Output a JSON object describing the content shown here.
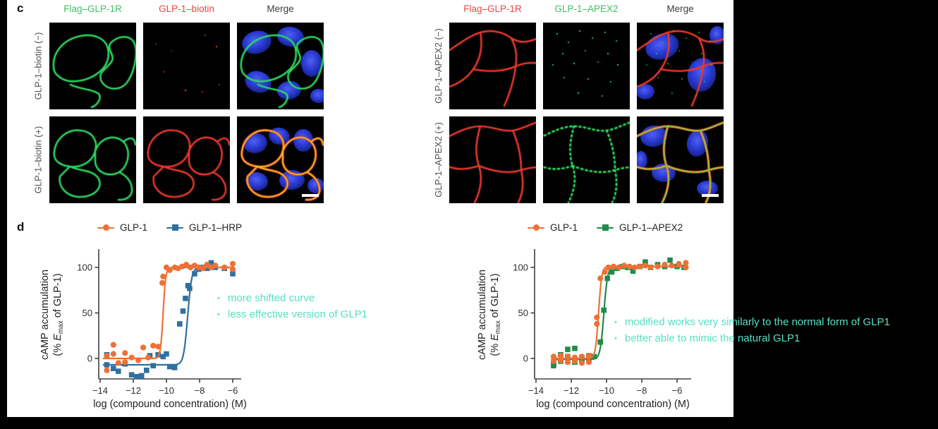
{
  "page": {
    "background": "#000000",
    "figure_background": "#FFFFFF"
  },
  "colors": {
    "annotation_teal": "#57E0C3",
    "channel_green": "#2BD85E",
    "channel_red": "#E8372C",
    "nucleus_blue": "#2F3FD6",
    "overlap_yellow": "#F0C41F",
    "axis_gray": "#404040",
    "scale_bar_white": "#FFFFFF",
    "header_gray": "#3C3C3C"
  },
  "panel_c": {
    "label": "c",
    "blocks": [
      {
        "id": "biotin",
        "col_headers": [
          {
            "text": "Flag–GLP-1R",
            "color": "#41BE62"
          },
          {
            "text": "GLP-1–biotin",
            "color": "#F04444"
          },
          {
            "text": "Merge",
            "color": "#3C3C3C"
          }
        ],
        "row_labels": [
          "GLP-1–biotin (−)",
          "GLP-1–biotin (+)"
        ]
      },
      {
        "id": "apex2",
        "col_headers": [
          {
            "text": "Flag–GLP-1R",
            "color": "#F04444"
          },
          {
            "text": "GLP-1–APEX2",
            "color": "#41BE62"
          },
          {
            "text": "Merge",
            "color": "#3C3C3C"
          }
        ],
        "row_labels": [
          "GLP-1–APEX2 (−)",
          "GLP-1–APEX2 (+)"
        ]
      }
    ]
  },
  "panel_d": {
    "label": "d"
  },
  "annotations": {
    "bullet": "•",
    "color": "#57E0C3",
    "left": {
      "items": [
        "more shifted curve",
        "less effective version of GLP1"
      ]
    },
    "right": {
      "items": [
        "modified works very similarly to the normal form of GLP1",
        "better able to mimic the natural GLP1"
      ]
    }
  },
  "chart_data": [
    {
      "type": "scatter",
      "title": "",
      "xlabel": "log (compound concentration) (M)",
      "ylabel": "cAMP accumulation (% Emax of GLP-1)",
      "ylabel_lines": {
        "line1": "cAMP accumulation",
        "line2_prefix": "(% ",
        "line2_italic": "E",
        "line2_sub": "max",
        "line2_suffix": " of GLP-1)"
      },
      "xlim": [
        -14,
        -5.8
      ],
      "ylim": [
        -25,
        118
      ],
      "xticks": [
        "−14",
        "−12",
        "−10",
        "−8",
        "−6"
      ],
      "xtick_values": [
        -14,
        -12,
        -10,
        -8,
        -6
      ],
      "yticks": [
        "0",
        "50",
        "100"
      ],
      "ytick_values": [
        0,
        50,
        100
      ],
      "grid": false,
      "legend_position": "top",
      "series": [
        {
          "name": "GLP-1",
          "color": "#ED7136",
          "marker": "circle",
          "fit": {
            "bottom": 0,
            "top": 100,
            "ec50": -10.2,
            "hill": 5.5
          },
          "points": [
            [
              -13.6,
              3
            ],
            [
              -13.6,
              -13
            ],
            [
              -13.2,
              15
            ],
            [
              -13.2,
              5
            ],
            [
              -12.9,
              -5
            ],
            [
              -12.5,
              6
            ],
            [
              -12.5,
              -4
            ],
            [
              -12.1,
              1
            ],
            [
              -11.7,
              -2
            ],
            [
              -11.4,
              12
            ],
            [
              -11.1,
              1
            ],
            [
              -10.8,
              14
            ],
            [
              -10.5,
              13
            ],
            [
              -10.25,
              83
            ],
            [
              -10.2,
              90
            ],
            [
              -10,
              100
            ],
            [
              -9.8,
              97
            ],
            [
              -9.5,
              100
            ],
            [
              -9.3,
              99
            ],
            [
              -9.05,
              101
            ],
            [
              -8.8,
              103
            ],
            [
              -8.55,
              100
            ],
            [
              -8.3,
              102
            ],
            [
              -8.05,
              100
            ],
            [
              -7.8,
              99
            ],
            [
              -7.55,
              103
            ],
            [
              -7.3,
              100
            ],
            [
              -7.05,
              102
            ],
            [
              -6.5,
              100
            ],
            [
              -6,
              104
            ],
            [
              -6,
              98
            ]
          ]
        },
        {
          "name": "GLP-1–HRP",
          "color": "#30709F",
          "marker": "square",
          "fit": {
            "bottom": -7,
            "top": 100,
            "ec50": -8.72,
            "hill": 3.6
          },
          "points": [
            [
              -13.6,
              4
            ],
            [
              -13.6,
              -7
            ],
            [
              -13.2,
              -11
            ],
            [
              -12.9,
              -14
            ],
            [
              -12.5,
              -6
            ],
            [
              -12.1,
              -18
            ],
            [
              -11.8,
              -20
            ],
            [
              -11.5,
              -19
            ],
            [
              -11.2,
              -13
            ],
            [
              -11,
              3
            ],
            [
              -10.8,
              -8
            ],
            [
              -10.5,
              4
            ],
            [
              -10.2,
              2
            ],
            [
              -10,
              5
            ],
            [
              -9.8,
              -9
            ],
            [
              -9.5,
              -10
            ],
            [
              -9.2,
              38
            ],
            [
              -9,
              52
            ],
            [
              -8.85,
              66
            ],
            [
              -8.7,
              80
            ],
            [
              -8.6,
              77
            ],
            [
              -8.3,
              93
            ],
            [
              -8.05,
              98
            ],
            [
              -7.8,
              100
            ],
            [
              -7.55,
              99
            ],
            [
              -7.3,
              105
            ],
            [
              -7.05,
              100
            ],
            [
              -6.5,
              99
            ],
            [
              -6,
              93
            ]
          ]
        }
      ]
    },
    {
      "type": "scatter",
      "title": "",
      "xlabel": "log (compound concentration) (M)",
      "ylabel": "cAMP accumulation (% Emax of GLP-1)",
      "ylabel_lines": {
        "line1": "cAMP accumulation",
        "line2_prefix": "(% ",
        "line2_italic": "E",
        "line2_sub": "max",
        "line2_suffix": " of GLP-1)"
      },
      "xlim": [
        -14,
        -5.3
      ],
      "ylim": [
        -25,
        118
      ],
      "xticks": [
        "−14",
        "−12",
        "−10",
        "−8",
        "−6"
      ],
      "xtick_values": [
        -14,
        -12,
        -10,
        -8,
        -6
      ],
      "yticks": [
        "0",
        "50",
        "100"
      ],
      "ytick_values": [
        0,
        50,
        100
      ],
      "grid": false,
      "legend_position": "top",
      "series": [
        {
          "name": "GLP-1",
          "color": "#ED7136",
          "marker": "circle",
          "fit": {
            "bottom": 0,
            "top": 101,
            "ec50": -10.45,
            "hill": 5
          },
          "points": [
            [
              -13,
              2
            ],
            [
              -13,
              -3
            ],
            [
              -12.6,
              3
            ],
            [
              -12.6,
              -2
            ],
            [
              -12.2,
              2
            ],
            [
              -12.2,
              -4
            ],
            [
              -11.8,
              1
            ],
            [
              -11.8,
              -3
            ],
            [
              -11.4,
              2
            ],
            [
              -11.4,
              -5
            ],
            [
              -11,
              3
            ],
            [
              -11,
              -4
            ],
            [
              -10.55,
              45
            ],
            [
              -10.55,
              38
            ],
            [
              -10.35,
              88
            ],
            [
              -10.1,
              95
            ],
            [
              -9.9,
              100
            ],
            [
              -9.6,
              101
            ],
            [
              -9.3,
              100
            ],
            [
              -9,
              102
            ],
            [
              -8.7,
              101
            ],
            [
              -8.4,
              100
            ],
            [
              -8.1,
              101
            ],
            [
              -7.8,
              102
            ],
            [
              -7.5,
              100
            ],
            [
              -7.1,
              101
            ],
            [
              -6.7,
              103
            ],
            [
              -6.3,
              102
            ],
            [
              -5.9,
              104
            ],
            [
              -5.5,
              105
            ],
            [
              -5.5,
              100
            ]
          ]
        },
        {
          "name": "GLP-1–APEX2",
          "color": "#1F8B4D",
          "marker": "square",
          "fit": {
            "bottom": -1,
            "top": 101,
            "ec50": -10.15,
            "hill": 4.2
          },
          "points": [
            [
              -13,
              -6
            ],
            [
              -13,
              -8
            ],
            [
              -12.6,
              4
            ],
            [
              -12.6,
              -3
            ],
            [
              -12.2,
              10
            ],
            [
              -12.2,
              2
            ],
            [
              -11.8,
              11
            ],
            [
              -11.8,
              -4
            ],
            [
              -11.4,
              1
            ],
            [
              -11.4,
              -2
            ],
            [
              -11,
              3
            ],
            [
              -11,
              -1
            ],
            [
              -10.7,
              2
            ],
            [
              -10.35,
              18
            ],
            [
              -10.15,
              53
            ],
            [
              -9.95,
              88
            ],
            [
              -9.7,
              95
            ],
            [
              -9.4,
              99
            ],
            [
              -9.1,
              101
            ],
            [
              -8.8,
              100
            ],
            [
              -8.5,
              96
            ],
            [
              -8.1,
              101
            ],
            [
              -7.8,
              106
            ],
            [
              -7.5,
              100
            ],
            [
              -7.1,
              103
            ],
            [
              -6.7,
              101
            ],
            [
              -6.4,
              108
            ],
            [
              -6,
              101
            ],
            [
              -5.6,
              100
            ]
          ]
        }
      ]
    }
  ]
}
